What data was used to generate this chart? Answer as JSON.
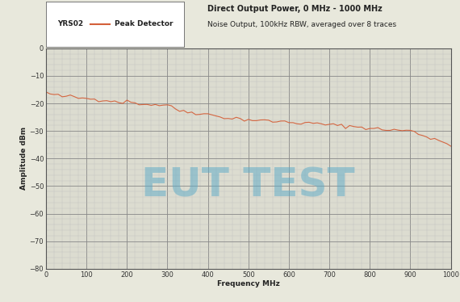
{
  "title_right_line1": "Direct Output Power, 0 MHz - 1000 MHz",
  "title_right_line2": "Noise Output, 100kHz RBW, averaged over 8 traces",
  "xlabel": "Frequency MHz",
  "ylabel": "Amplitude dBm",
  "xlim": [
    0,
    1000
  ],
  "ylim": [
    -80,
    0
  ],
  "xticks": [
    0,
    100,
    200,
    300,
    400,
    500,
    600,
    700,
    800,
    900,
    1000
  ],
  "yticks": [
    0,
    -10,
    -20,
    -30,
    -40,
    -50,
    -60,
    -70,
    -80
  ],
  "legend_instrument": "YRS02",
  "legend_trace": "Peak Detector",
  "line_color": "#d4603a",
  "background_color": "#e8e8dc",
  "plot_bg_color": "#dcdcd0",
  "grid_major_color": "#888888",
  "grid_minor_color": "#bbbbbb",
  "watermark_text": "EUT TEST",
  "watermark_color": "#5aaac8",
  "watermark_alpha": 0.5,
  "freq_data": [
    0,
    10,
    20,
    30,
    40,
    50,
    60,
    70,
    80,
    90,
    100,
    110,
    120,
    130,
    140,
    150,
    160,
    170,
    180,
    190,
    200,
    210,
    220,
    230,
    240,
    250,
    260,
    270,
    280,
    290,
    300,
    310,
    320,
    330,
    340,
    350,
    360,
    370,
    380,
    390,
    400,
    410,
    420,
    430,
    440,
    450,
    460,
    470,
    480,
    490,
    500,
    510,
    520,
    530,
    540,
    550,
    560,
    570,
    580,
    590,
    600,
    610,
    620,
    630,
    640,
    650,
    660,
    670,
    680,
    690,
    700,
    710,
    720,
    730,
    740,
    750,
    760,
    770,
    780,
    790,
    800,
    810,
    820,
    830,
    840,
    850,
    860,
    870,
    880,
    890,
    900,
    910,
    920,
    930,
    940,
    950,
    960,
    970,
    980,
    990,
    1000
  ],
  "amp_data": [
    -16.0,
    -16.5,
    -17.0,
    -17.2,
    -17.5,
    -17.3,
    -17.5,
    -17.8,
    -18.0,
    -18.2,
    -18.0,
    -18.3,
    -18.5,
    -18.7,
    -18.5,
    -18.8,
    -19.0,
    -19.2,
    -19.4,
    -19.5,
    -19.3,
    -19.5,
    -19.8,
    -20.0,
    -20.2,
    -20.4,
    -20.3,
    -20.5,
    -20.6,
    -20.5,
    -20.3,
    -21.5,
    -22.0,
    -22.5,
    -22.8,
    -23.0,
    -23.2,
    -23.4,
    -23.5,
    -23.8,
    -24.0,
    -24.2,
    -24.5,
    -24.8,
    -25.0,
    -25.2,
    -25.5,
    -25.4,
    -25.6,
    -25.8,
    -25.9,
    -26.1,
    -26.0,
    -26.2,
    -26.3,
    -26.4,
    -26.5,
    -26.6,
    -26.5,
    -26.7,
    -26.8,
    -26.9,
    -27.0,
    -27.1,
    -27.2,
    -27.3,
    -27.2,
    -27.4,
    -27.5,
    -27.6,
    -27.7,
    -27.9,
    -28.0,
    -28.1,
    -28.2,
    -28.3,
    -28.4,
    -28.5,
    -28.6,
    -28.8,
    -29.0,
    -29.2,
    -29.3,
    -29.4,
    -29.5,
    -29.6,
    -29.7,
    -29.8,
    -29.7,
    -29.9,
    -29.8,
    -30.5,
    -31.0,
    -31.5,
    -32.0,
    -32.5,
    -32.8,
    -33.5,
    -34.0,
    -34.5,
    -35.0
  ],
  "title_fontsize": 7.0,
  "label_fontsize": 6.5,
  "tick_fontsize": 6.0,
  "legend_fontsize": 6.5
}
